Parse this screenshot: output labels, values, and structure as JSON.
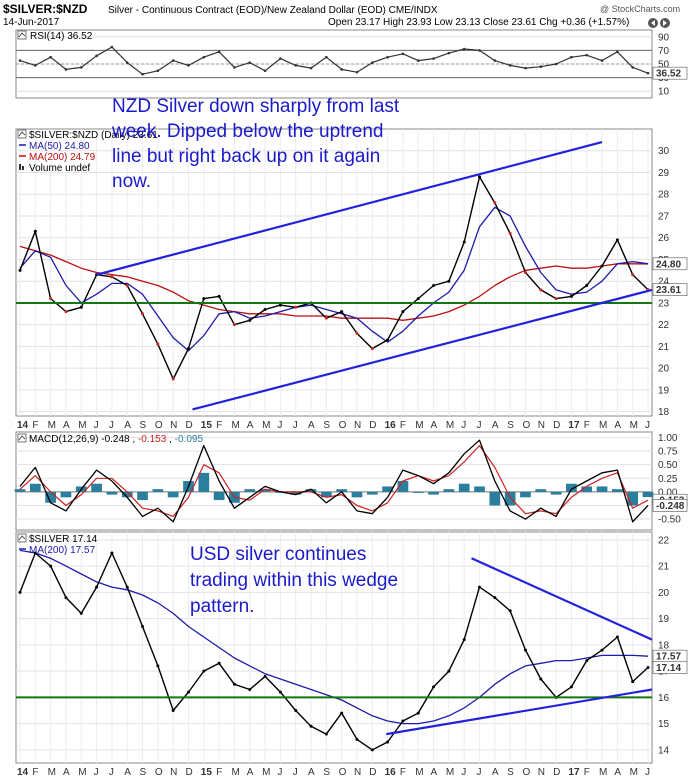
{
  "header": {
    "symbol": "$SILVER:$NZD",
    "description": "Silver - Continuous Contract (EOD)/New Zealand Dollar (EOD) CME/INDX",
    "date": "14-Jun-2017",
    "ohlc": "Open 23.17  High 23.93  Low 23.13  Close 23.61  Chg +0.36 (+1.57%)",
    "credit": "@ StockCharts.com",
    "nav_icons": [
      "left-arrow-icon",
      "right-arrow-icon"
    ]
  },
  "colors": {
    "price": "#000000",
    "ma50": "#1c1caa",
    "ma200": "#bb1111",
    "support": "#117711",
    "trend": "#2222dd",
    "macd_hist": "#2a7f9f",
    "annotation": "#1a1acc"
  },
  "chart_data": [
    {
      "type": "line",
      "title": "RSI(14) 36.52",
      "ylim": [
        0,
        100
      ],
      "yticks": [
        "10",
        "30",
        "50",
        "70",
        "90"
      ],
      "reference_lines": [
        30,
        70
      ],
      "last_value_label": "36.52",
      "x_months": [
        "2014-01",
        "2014-02",
        "2014-03",
        "2014-04",
        "2014-05",
        "2014-06",
        "2014-07",
        "2014-08",
        "2014-09",
        "2014-10",
        "2014-11",
        "2014-12",
        "2015-01",
        "2015-02",
        "2015-03",
        "2015-04",
        "2015-05",
        "2015-06",
        "2015-07",
        "2015-08",
        "2015-09",
        "2015-10",
        "2015-11",
        "2015-12",
        "2016-01",
        "2016-02",
        "2016-03",
        "2016-04",
        "2016-05",
        "2016-06",
        "2016-07",
        "2016-08",
        "2016-09",
        "2016-10",
        "2016-11",
        "2016-12",
        "2017-01",
        "2017-02",
        "2017-03",
        "2017-04",
        "2017-05",
        "2017-06"
      ],
      "values": [
        55,
        48,
        60,
        42,
        45,
        62,
        75,
        52,
        35,
        40,
        55,
        48,
        60,
        68,
        45,
        52,
        40,
        58,
        48,
        44,
        60,
        42,
        38,
        52,
        60,
        65,
        55,
        58,
        66,
        72,
        70,
        55,
        48,
        44,
        46,
        50,
        60,
        63,
        55,
        68,
        45,
        36.52
      ]
    },
    {
      "type": "line",
      "title": "$SILVER:$NZD",
      "legend": [
        "$SILVER:$NZD (Daily) 23.61",
        "MA(50) 24.80",
        "MA(200) 24.79",
        "Volume undef"
      ],
      "ylim": [
        17.8,
        31
      ],
      "yticks": [
        "18",
        "19",
        "20",
        "21",
        "22",
        "23",
        "24",
        "25",
        "26",
        "27",
        "28",
        "29",
        "30"
      ],
      "x_labels": [
        "14",
        "F",
        "M",
        "A",
        "M",
        "J",
        "J",
        "A",
        "S",
        "O",
        "N",
        "D",
        "15",
        "F",
        "M",
        "A",
        "M",
        "J",
        "J",
        "A",
        "S",
        "O",
        "N",
        "D",
        "16",
        "F",
        "M",
        "A",
        "M",
        "J",
        "J",
        "A",
        "S",
        "O",
        "N",
        "D",
        "17",
        "F",
        "M",
        "A",
        "M",
        "J"
      ],
      "series": [
        {
          "name": "$SILVER:$NZD (Daily) 23.61",
          "values": [
            24.5,
            26.3,
            23.2,
            22.6,
            22.8,
            24.3,
            24.2,
            23.8,
            22.5,
            21.1,
            19.5,
            20.9,
            23.2,
            23.3,
            22.0,
            22.2,
            22.7,
            22.9,
            22.8,
            23.0,
            22.3,
            22.6,
            21.6,
            20.9,
            21.3,
            22.6,
            23.2,
            23.8,
            24.0,
            25.8,
            28.8,
            27.6,
            26.2,
            24.4,
            23.6,
            23.2,
            23.3,
            23.8,
            24.7,
            25.9,
            24.3,
            23.61
          ]
        },
        {
          "name": "MA(50) 24.80",
          "values": [
            24.6,
            25.4,
            25.1,
            23.8,
            23.0,
            23.4,
            23.9,
            23.9,
            23.4,
            22.4,
            21.4,
            20.8,
            21.5,
            22.5,
            22.6,
            22.3,
            22.4,
            22.6,
            22.8,
            22.9,
            22.7,
            22.5,
            22.3,
            21.7,
            21.2,
            21.7,
            22.4,
            23.0,
            23.5,
            24.5,
            26.5,
            27.4,
            27.0,
            25.6,
            24.4,
            23.6,
            23.4,
            23.5,
            24.0,
            24.8,
            24.9,
            24.8
          ]
        },
        {
          "name": "MA(200) 24.79",
          "values": [
            25.6,
            25.4,
            25.2,
            24.9,
            24.6,
            24.4,
            24.3,
            24.2,
            24.0,
            23.8,
            23.5,
            23.1,
            22.9,
            22.7,
            22.6,
            22.5,
            22.5,
            22.5,
            22.4,
            22.4,
            22.4,
            22.3,
            22.3,
            22.3,
            22.3,
            22.2,
            22.3,
            22.4,
            22.6,
            22.9,
            23.3,
            23.8,
            24.2,
            24.5,
            24.6,
            24.7,
            24.6,
            24.6,
            24.7,
            24.8,
            24.8,
            24.79
          ]
        }
      ],
      "support_level": 23.0,
      "last_value_labels": [
        "24.80",
        "23.61"
      ],
      "annotation": "NZD Silver down sharply from last week. Dipped below the uptrend line but right back up on it again now."
    },
    {
      "type": "line",
      "title": "MACD(12,26,9) -0.248, -0.153, -0.095",
      "legend": [
        "MACD(12,26,9)",
        "-0.248",
        "-0.153",
        "-0.095"
      ],
      "ylim": [
        -0.7,
        1.1
      ],
      "yticks": [
        "-0.50",
        "-0.25",
        "0.00",
        "0.25",
        "0.50",
        "0.75",
        "1.00"
      ],
      "series": [
        {
          "name": "MACD(12,26,9) -0.248",
          "values": [
            0.1,
            0.45,
            -0.2,
            -0.35,
            0.05,
            0.4,
            0.2,
            -0.1,
            -0.45,
            -0.3,
            -0.55,
            0.1,
            0.85,
            0.2,
            -0.3,
            -0.1,
            0.1,
            0.0,
            -0.05,
            0.05,
            -0.2,
            0.0,
            -0.35,
            -0.4,
            -0.1,
            0.4,
            0.3,
            0.15,
            0.35,
            0.7,
            0.95,
            0.2,
            -0.35,
            -0.5,
            -0.3,
            -0.45,
            0.05,
            0.2,
            0.35,
            0.4,
            -0.55,
            -0.248
          ]
        },
        {
          "name": "-0.153",
          "values": [
            0.05,
            0.3,
            0.0,
            -0.25,
            -0.05,
            0.25,
            0.25,
            0.0,
            -0.3,
            -0.35,
            -0.45,
            -0.1,
            0.5,
            0.35,
            -0.1,
            -0.15,
            0.05,
            0.0,
            0.0,
            0.0,
            -0.1,
            -0.05,
            -0.25,
            -0.35,
            -0.2,
            0.2,
            0.3,
            0.2,
            0.3,
            0.55,
            0.85,
            0.45,
            -0.1,
            -0.4,
            -0.35,
            -0.4,
            -0.1,
            0.1,
            0.25,
            0.35,
            -0.3,
            -0.153
          ]
        }
      ],
      "histogram_name": "-0.095",
      "last_value_labels": [
        "-0.153",
        "-0.248"
      ]
    },
    {
      "type": "line",
      "title": "$SILVER",
      "legend": [
        "$SILVER 17.14",
        "MA(200) 17.57"
      ],
      "ylim": [
        13.5,
        22.3
      ],
      "yticks": [
        "14",
        "15",
        "16",
        "17",
        "18",
        "19",
        "20",
        "21",
        "22"
      ],
      "x_labels": [
        "14",
        "F",
        "M",
        "A",
        "M",
        "J",
        "J",
        "A",
        "S",
        "O",
        "N",
        "D",
        "15",
        "F",
        "M",
        "A",
        "M",
        "J",
        "J",
        "A",
        "S",
        "O",
        "N",
        "D",
        "16",
        "F",
        "M",
        "A",
        "M",
        "J",
        "J",
        "A",
        "S",
        "O",
        "N",
        "D",
        "17",
        "F",
        "M",
        "A",
        "M",
        "J"
      ],
      "series": [
        {
          "name": "$SILVER 17.14",
          "values": [
            20.0,
            21.5,
            21.0,
            19.8,
            19.2,
            20.2,
            21.5,
            20.2,
            18.7,
            17.2,
            15.5,
            16.2,
            17.0,
            17.3,
            16.5,
            16.3,
            16.8,
            16.2,
            15.5,
            14.9,
            14.6,
            15.4,
            14.4,
            14.0,
            14.3,
            15.1,
            15.4,
            16.4,
            17.0,
            18.2,
            20.2,
            19.8,
            19.3,
            17.8,
            16.7,
            16.0,
            16.4,
            17.4,
            17.8,
            18.3,
            16.6,
            17.14
          ]
        },
        {
          "name": "MA(200) 17.57",
          "values": [
            21.6,
            21.5,
            21.3,
            21.0,
            20.7,
            20.4,
            20.2,
            20.1,
            19.9,
            19.6,
            19.2,
            18.7,
            18.3,
            17.9,
            17.5,
            17.2,
            16.9,
            16.7,
            16.5,
            16.3,
            16.1,
            15.9,
            15.6,
            15.3,
            15.1,
            15.0,
            15.0,
            15.1,
            15.3,
            15.6,
            16.0,
            16.5,
            16.9,
            17.2,
            17.3,
            17.4,
            17.4,
            17.5,
            17.6,
            17.6,
            17.6,
            17.57
          ]
        }
      ],
      "support_level": 16.0,
      "last_value_labels": [
        "17.57",
        "17.14"
      ],
      "annotation": "USD silver continues trading within this wedge pattern."
    }
  ]
}
